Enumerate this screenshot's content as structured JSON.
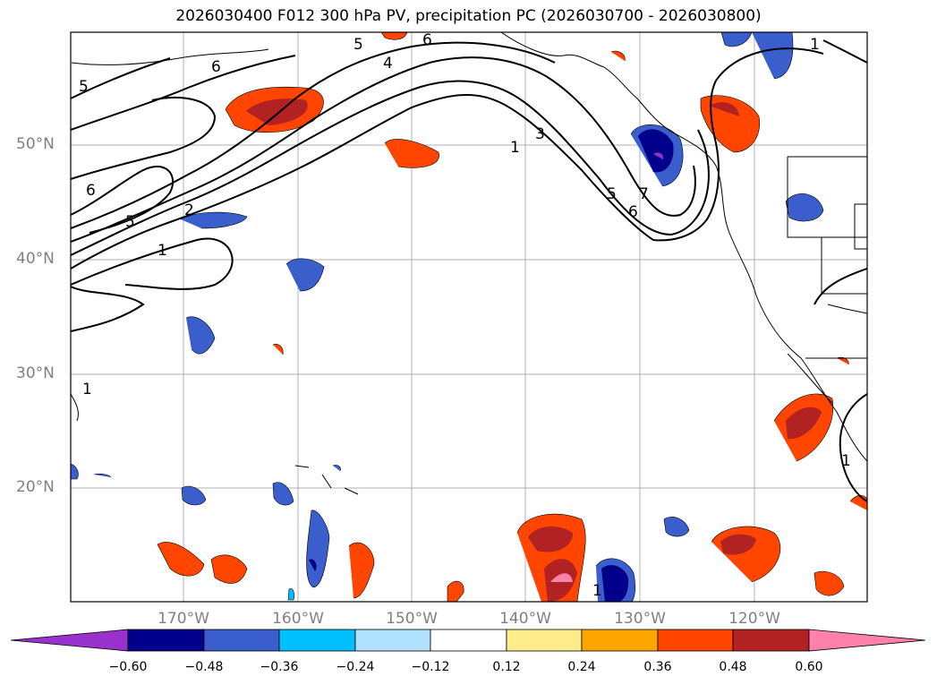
{
  "title": "2026030400 F012 300 hPa PV, precipitation PC (2026030700 - 2026030800)",
  "lat_labels": [
    "50°N",
    "40°N",
    "30°N",
    "20°N"
  ],
  "lon_labels": [
    "170°W",
    "160°W",
    "150°W",
    "140°W",
    "130°W",
    "120°W"
  ],
  "colorbar": {
    "ticks": [
      "−0.60",
      "−0.48",
      "−0.36",
      "−0.24",
      "−0.12",
      "0.12",
      "0.24",
      "0.36",
      "0.48",
      "0.60"
    ],
    "colors": [
      "#9932CC",
      "#00008B",
      "#3A5FCD",
      "#00BFFF",
      "#B0E2FF",
      "#FFFFFF",
      "#FFEC8B",
      "#FFA500",
      "#FF4500",
      "#B22222",
      "#FF82AB"
    ]
  },
  "contour_labels": [
    "1",
    "2",
    "3",
    "4",
    "5",
    "6",
    "7"
  ]
}
